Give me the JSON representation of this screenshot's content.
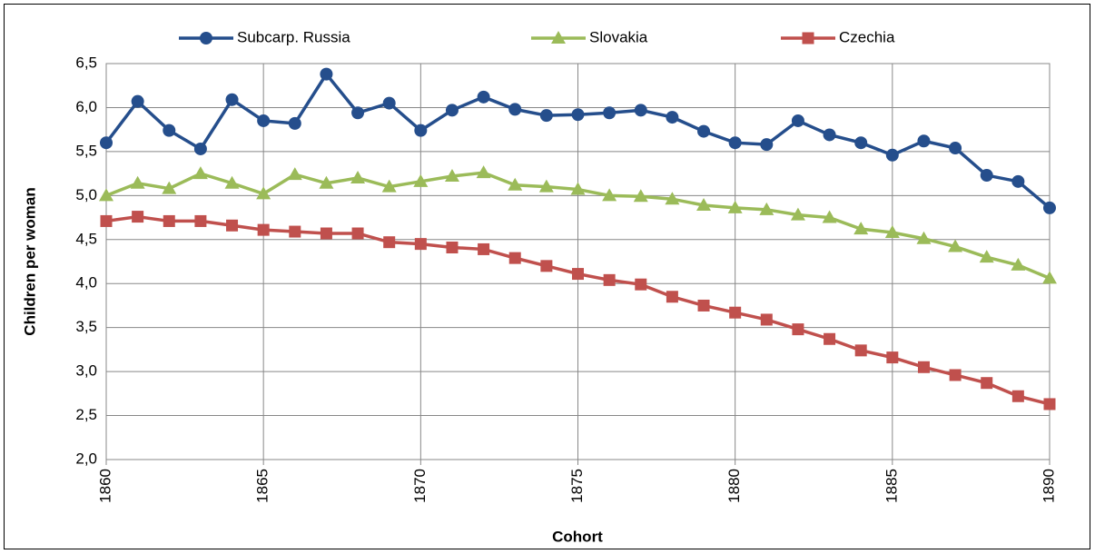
{
  "chart_data": {
    "type": "line",
    "x_label": "Cohort",
    "y_label": "Children per woman",
    "x": [
      1860,
      1861,
      1862,
      1863,
      1864,
      1865,
      1866,
      1867,
      1868,
      1869,
      1870,
      1871,
      1872,
      1873,
      1874,
      1875,
      1876,
      1877,
      1878,
      1879,
      1880,
      1881,
      1882,
      1883,
      1884,
      1885,
      1886,
      1887,
      1888,
      1889,
      1890
    ],
    "series": [
      {
        "name": "Subcarp. Russia",
        "color": "#254e8c",
        "marker": "circle",
        "values": [
          5.6,
          6.07,
          5.74,
          5.53,
          6.09,
          5.85,
          5.82,
          6.38,
          5.94,
          6.05,
          5.74,
          5.97,
          6.12,
          5.98,
          5.91,
          5.92,
          5.94,
          5.97,
          5.89,
          5.73,
          5.6,
          5.58,
          5.85,
          5.69,
          5.6,
          5.46,
          5.62,
          5.54,
          5.23,
          5.16,
          4.86
        ]
      },
      {
        "name": "Slovakia",
        "color": "#9bbb59",
        "marker": "triangle",
        "values": [
          5.0,
          5.14,
          5.08,
          5.25,
          5.14,
          5.02,
          5.24,
          5.14,
          5.2,
          5.1,
          5.16,
          5.22,
          5.26,
          5.12,
          5.1,
          5.07,
          5.0,
          4.99,
          4.96,
          4.89,
          4.86,
          4.84,
          4.78,
          4.75,
          4.62,
          4.58,
          4.51,
          4.42,
          4.3,
          4.21,
          4.06
        ]
      },
      {
        "name": "Czechia",
        "color": "#c0504d",
        "marker": "square",
        "values": [
          4.71,
          4.76,
          4.71,
          4.71,
          4.66,
          4.61,
          4.59,
          4.57,
          4.57,
          4.47,
          4.45,
          4.41,
          4.39,
          4.29,
          4.2,
          4.11,
          4.04,
          3.99,
          3.85,
          3.75,
          3.67,
          3.59,
          3.48,
          3.37,
          3.24,
          3.16,
          3.05,
          2.96,
          2.87,
          2.72,
          2.63
        ]
      }
    ],
    "xlim": [
      1860,
      1890
    ],
    "xticks": [
      1860,
      1865,
      1870,
      1875,
      1880,
      1885,
      1890
    ],
    "ylim": [
      2.0,
      6.5
    ],
    "yticks": [
      {
        "value": 2.0,
        "label": "2,0"
      },
      {
        "value": 2.5,
        "label": "2,5"
      },
      {
        "value": 3.0,
        "label": "3,0"
      },
      {
        "value": 3.5,
        "label": "3,5"
      },
      {
        "value": 4.0,
        "label": "4,0"
      },
      {
        "value": 4.5,
        "label": "4,5"
      },
      {
        "value": 5.0,
        "label": "5,0"
      },
      {
        "value": 5.5,
        "label": "5,5"
      },
      {
        "value": 6.0,
        "label": "6,0"
      },
      {
        "value": 6.5,
        "label": "6,5"
      }
    ],
    "grid": true,
    "legend": "top"
  }
}
